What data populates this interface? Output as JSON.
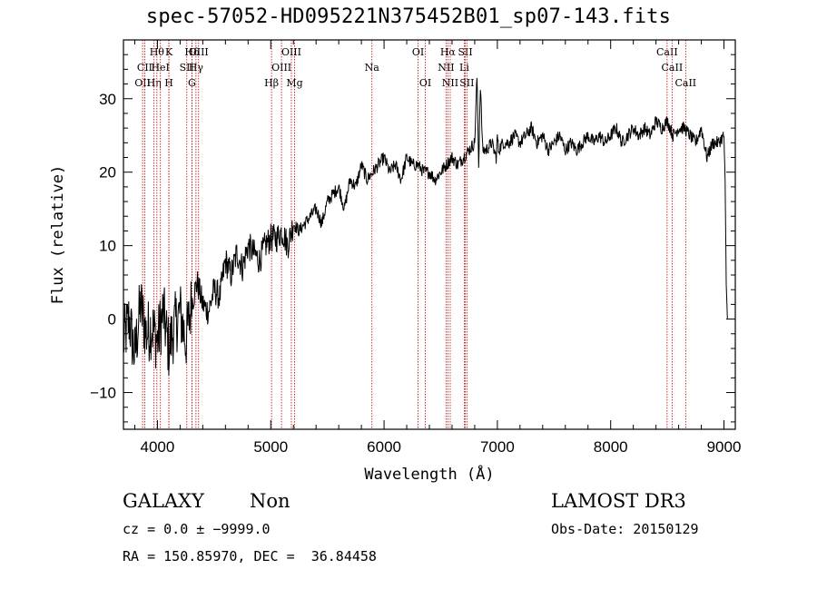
{
  "title": "spec-57052-HD095221N375452B01_sp07-143.fits",
  "chart_data": {
    "type": "line",
    "xlabel": "Wavelength (Å)",
    "ylabel": "Flux (relative)",
    "xlim": [
      3700,
      9100
    ],
    "ylim": [
      -15,
      38
    ],
    "xticks": [
      4000,
      5000,
      6000,
      7000,
      8000,
      9000
    ],
    "yticks": [
      -10,
      0,
      10,
      20,
      30
    ],
    "xtick_labels": [
      "4000",
      "5000",
      "6000",
      "7000",
      "8000",
      "9000"
    ],
    "ytick_labels": [
      "−10",
      "0",
      "10",
      "20",
      "30"
    ],
    "series": [
      {
        "name": "spectrum",
        "x": [
          3700,
          3750,
          3800,
          3850,
          3900,
          3950,
          4000,
          4050,
          4100,
          4150,
          4200,
          4250,
          4300,
          4350,
          4400,
          4450,
          4500,
          4550,
          4600,
          4650,
          4700,
          4750,
          4800,
          4850,
          4900,
          4950,
          5000,
          5050,
          5100,
          5150,
          5200,
          5250,
          5300,
          5350,
          5400,
          5450,
          5500,
          5550,
          5600,
          5650,
          5700,
          5750,
          5800,
          5850,
          5900,
          5950,
          6000,
          6050,
          6100,
          6150,
          6200,
          6250,
          6300,
          6350,
          6400,
          6450,
          6500,
          6550,
          6600,
          6650,
          6700,
          6750,
          6800,
          6820,
          6835,
          6850,
          6870,
          6900,
          6950,
          6990,
          7000,
          7010,
          7050,
          7100,
          7150,
          7200,
          7250,
          7300,
          7350,
          7400,
          7450,
          7500,
          7550,
          7600,
          7650,
          7700,
          7750,
          7800,
          7850,
          7900,
          7950,
          8000,
          8050,
          8100,
          8150,
          8200,
          8250,
          8300,
          8350,
          8400,
          8450,
          8500,
          8550,
          8600,
          8650,
          8700,
          8750,
          8800,
          8850,
          8900,
          8950,
          9000,
          9010,
          9020,
          9030
        ],
        "y": [
          -3,
          0,
          -5,
          2,
          -2,
          -1,
          -3,
          1,
          -4,
          -1,
          1,
          -3,
          2,
          5,
          2,
          1,
          4,
          3,
          8,
          6,
          9,
          7,
          10,
          9,
          8,
          10,
          11,
          11,
          12,
          10,
          13,
          12,
          13,
          14,
          15,
          13,
          16,
          17,
          18,
          15,
          19,
          18,
          21,
          19,
          20,
          21,
          22,
          20,
          21,
          19,
          22,
          21,
          21,
          20,
          20,
          19,
          20,
          21,
          22,
          21,
          22,
          23,
          24,
          33,
          21,
          32,
          23,
          23,
          24,
          22,
          25,
          23,
          24,
          24,
          25,
          24,
          25,
          26,
          24,
          25,
          23,
          24,
          25,
          23,
          24,
          23,
          24,
          25,
          24,
          25,
          24,
          25,
          26,
          24,
          25,
          26,
          25,
          26,
          25,
          27,
          26,
          27,
          25,
          26,
          26,
          25,
          24,
          26,
          22,
          24,
          24,
          25,
          18,
          5,
          0
        ]
      }
    ],
    "lines": [
      {
        "wl": 3869,
        "label": "OII",
        "row": 3
      },
      {
        "wl": 3888,
        "label": "CII",
        "row": 2
      },
      {
        "wl": 3970,
        "label": "Hη",
        "row": 3
      },
      {
        "wl": 3995,
        "label": "Hθ",
        "row": 1
      },
      {
        "wl": 4026,
        "label": "HeI",
        "row": 2
      },
      {
        "wl": 4101,
        "label": "H",
        "row": 3
      },
      {
        "wl": 4101,
        "label": "K",
        "row": 1
      },
      {
        "wl": 4259,
        "label": "SII",
        "row": 2
      },
      {
        "wl": 4305,
        "label": "Hδ",
        "row": 1
      },
      {
        "wl": 4304,
        "label": "G",
        "row": 3
      },
      {
        "wl": 4340,
        "label": "Hγ",
        "row": 2
      },
      {
        "wl": 4363,
        "label": "OIII",
        "row": 1
      },
      {
        "wl": 5007,
        "label": "Hβ",
        "row": 3
      },
      {
        "wl": 5095,
        "label": "OIII",
        "row": 2
      },
      {
        "wl": 5182,
        "label": "OIII",
        "row": 1
      },
      {
        "wl": 5210,
        "label": "Mg",
        "row": 3
      },
      {
        "wl": 5893,
        "label": "Na",
        "row": 2
      },
      {
        "wl": 6300,
        "label": "OI",
        "row": 1
      },
      {
        "wl": 6364,
        "label": "OI",
        "row": 3
      },
      {
        "wl": 6548,
        "label": "NII",
        "row": 2
      },
      {
        "wl": 6563,
        "label": "Hα",
        "row": 1
      },
      {
        "wl": 6584,
        "label": "NII",
        "row": 3
      },
      {
        "wl": 6708,
        "label": "Li",
        "row": 2
      },
      {
        "wl": 6717,
        "label": "SII",
        "row": 1
      },
      {
        "wl": 6731,
        "label": "SII",
        "row": 3
      },
      {
        "wl": 8498,
        "label": "CaII",
        "row": 1
      },
      {
        "wl": 8542,
        "label": "CaII",
        "row": 2
      },
      {
        "wl": 8662,
        "label": "CaII",
        "row": 3
      }
    ]
  },
  "info": {
    "class": "GALAXY",
    "subclass": "Non",
    "survey": "LAMOST DR3",
    "cz": "cz = 0.0 ± −9999.0",
    "obs_date": "Obs-Date: 20150129",
    "coords": "RA = 150.85970, DEC =  36.84458"
  }
}
